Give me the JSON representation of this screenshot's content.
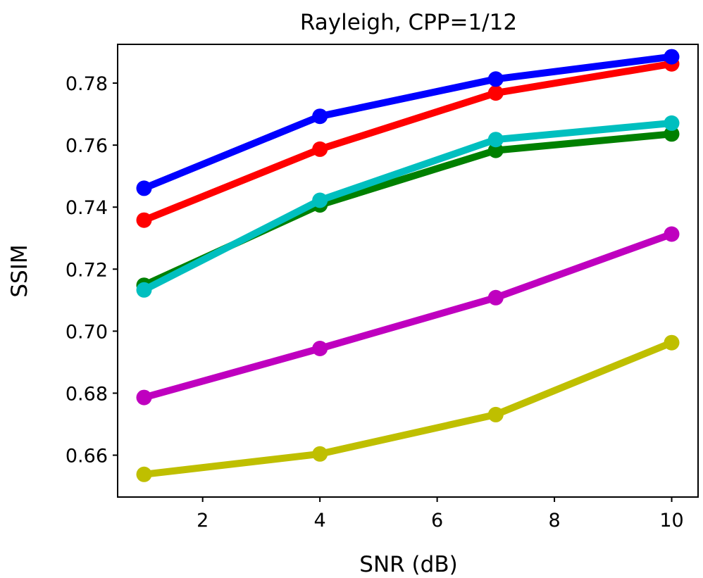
{
  "chart_data": {
    "type": "line",
    "title": "Rayleigh, CPP=1/12",
    "xlabel": "SNR (dB)",
    "ylabel": "SSIM",
    "x": [
      1,
      4,
      7,
      10
    ],
    "xlim": [
      0.55,
      10.45
    ],
    "ylim": [
      0.6465,
      0.7925
    ],
    "xticks": [
      2,
      4,
      6,
      8,
      10
    ],
    "xtick_labels": [
      "2",
      "4",
      "6",
      "8",
      "10"
    ],
    "yticks": [
      0.66,
      0.68,
      0.7,
      0.72,
      0.74,
      0.76,
      0.78
    ],
    "ytick_labels": [
      "0.66",
      "0.68",
      "0.70",
      "0.72",
      "0.74",
      "0.76",
      "0.78"
    ],
    "grid": false,
    "series": [
      {
        "name": "series-green",
        "color": "#008000",
        "values": [
          0.7148,
          0.7407,
          0.7583,
          0.7636
        ]
      },
      {
        "name": "series-cyan",
        "color": "#00bfbf",
        "values": [
          0.7133,
          0.7422,
          0.7618,
          0.7671
        ]
      },
      {
        "name": "series-yellow",
        "color": "#bfbf00",
        "values": [
          0.6538,
          0.6604,
          0.6731,
          0.6963
        ]
      },
      {
        "name": "series-magenta",
        "color": "#bf00bf",
        "values": [
          0.6786,
          0.6944,
          0.7108,
          0.7313
        ]
      },
      {
        "name": "series-red",
        "color": "#ff0000",
        "values": [
          0.7358,
          0.7587,
          0.7768,
          0.7862
        ]
      },
      {
        "name": "series-blue",
        "color": "#0000ff",
        "values": [
          0.7461,
          0.7693,
          0.7813,
          0.7885
        ]
      }
    ]
  }
}
